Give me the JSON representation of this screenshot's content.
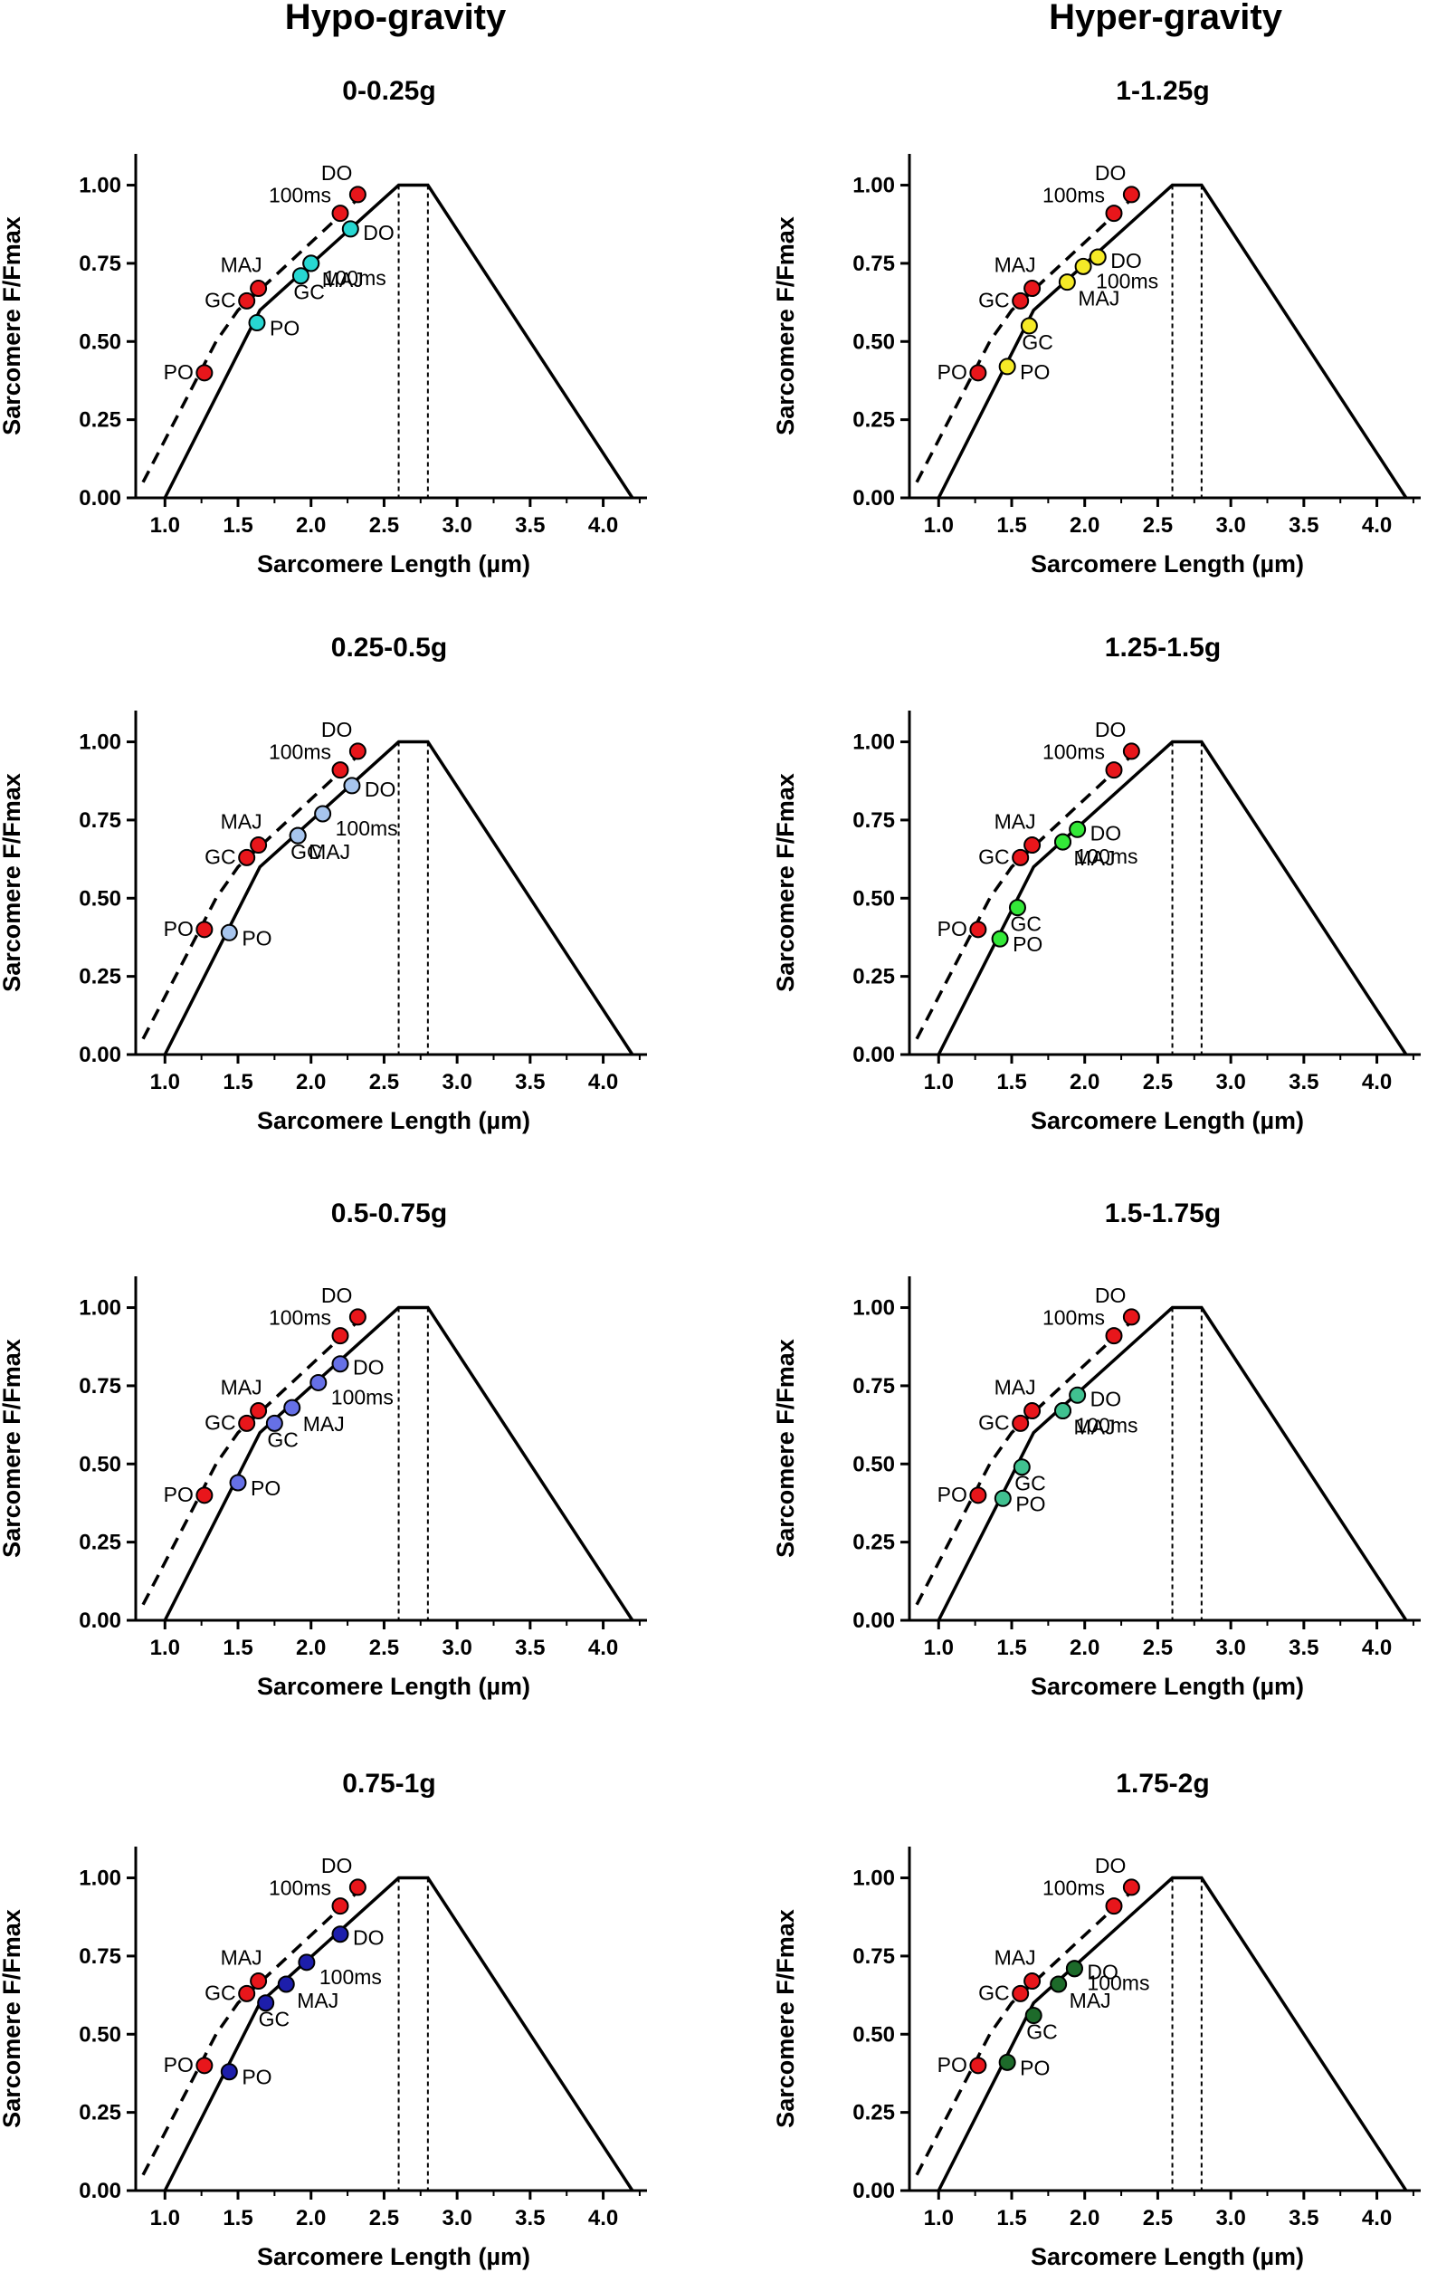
{
  "columns": [
    "Hypo-gravity",
    "Hyper-gravity"
  ],
  "reference_color": "#e8161b",
  "chart_data": [
    {
      "type": "scatter",
      "title": "0-0.25g",
      "xlabel": "Sarcomere Length (µm)",
      "ylabel": "Sarcomere F/Fmax",
      "xlim": [
        0.8,
        4.3
      ],
      "ylim": [
        0,
        1.1
      ],
      "plateau": [
        2.6,
        2.8
      ],
      "color": "#27d7d2",
      "reference": [
        {
          "label": "PO",
          "x": 1.27,
          "y": 0.4
        },
        {
          "label": "GC",
          "x": 1.56,
          "y": 0.63
        },
        {
          "label": "MAJ",
          "x": 1.64,
          "y": 0.67
        },
        {
          "label": "100ms",
          "x": 2.2,
          "y": 0.91
        },
        {
          "label": "DO",
          "x": 2.32,
          "y": 0.97
        }
      ],
      "condition": [
        {
          "label": "PO",
          "x": 1.63,
          "y": 0.56
        },
        {
          "label": "GC",
          "x": 1.93,
          "y": 0.71
        },
        {
          "label": "MAJ",
          "x": 2.0,
          "y": 0.75
        },
        {
          "label": "100ms",
          "x": 2.0,
          "y": 0.75
        },
        {
          "label": "DO",
          "x": 2.27,
          "y": 0.86
        }
      ]
    },
    {
      "type": "scatter",
      "title": "1-1.25g",
      "xlabel": "Sarcomere Length (µm)",
      "ylabel": "Sarcomere F/Fmax",
      "xlim": [
        0.8,
        4.3
      ],
      "ylim": [
        0,
        1.1
      ],
      "plateau": [
        2.6,
        2.8
      ],
      "color": "#f5ea27",
      "reference": [
        {
          "label": "PO",
          "x": 1.27,
          "y": 0.4
        },
        {
          "label": "GC",
          "x": 1.56,
          "y": 0.63
        },
        {
          "label": "MAJ",
          "x": 1.64,
          "y": 0.67
        },
        {
          "label": "100ms",
          "x": 2.2,
          "y": 0.91
        },
        {
          "label": "DO",
          "x": 2.32,
          "y": 0.97
        }
      ],
      "condition": [
        {
          "label": "PO",
          "x": 1.47,
          "y": 0.42
        },
        {
          "label": "GC",
          "x": 1.62,
          "y": 0.55
        },
        {
          "label": "MAJ",
          "x": 1.88,
          "y": 0.69
        },
        {
          "label": "100ms",
          "x": 1.99,
          "y": 0.74
        },
        {
          "label": "DO",
          "x": 2.09,
          "y": 0.77
        }
      ]
    },
    {
      "type": "scatter",
      "title": "0.25-0.5g",
      "xlabel": "Sarcomere Length (µm)",
      "ylabel": "Sarcomere F/Fmax",
      "xlim": [
        0.8,
        4.3
      ],
      "ylim": [
        0,
        1.1
      ],
      "plateau": [
        2.6,
        2.8
      ],
      "color": "#a7c5ee",
      "reference": [
        {
          "label": "PO",
          "x": 1.27,
          "y": 0.4
        },
        {
          "label": "GC",
          "x": 1.56,
          "y": 0.63
        },
        {
          "label": "MAJ",
          "x": 1.64,
          "y": 0.67
        },
        {
          "label": "100ms",
          "x": 2.2,
          "y": 0.91
        },
        {
          "label": "DO",
          "x": 2.32,
          "y": 0.97
        }
      ],
      "condition": [
        {
          "label": "PO",
          "x": 1.44,
          "y": 0.39
        },
        {
          "label": "GC",
          "x": 1.91,
          "y": 0.7
        },
        {
          "label": "MAJ",
          "x": 1.91,
          "y": 0.7
        },
        {
          "label": "100ms",
          "x": 2.08,
          "y": 0.77
        },
        {
          "label": "DO",
          "x": 2.28,
          "y": 0.86
        }
      ]
    },
    {
      "type": "scatter",
      "title": "1.25-1.5g",
      "xlabel": "Sarcomere Length (µm)",
      "ylabel": "Sarcomere F/Fmax",
      "xlim": [
        0.8,
        4.3
      ],
      "ylim": [
        0,
        1.1
      ],
      "plateau": [
        2.6,
        2.8
      ],
      "color": "#33e838",
      "reference": [
        {
          "label": "PO",
          "x": 1.27,
          "y": 0.4
        },
        {
          "label": "GC",
          "x": 1.56,
          "y": 0.63
        },
        {
          "label": "MAJ",
          "x": 1.64,
          "y": 0.67
        },
        {
          "label": "100ms",
          "x": 2.2,
          "y": 0.91
        },
        {
          "label": "DO",
          "x": 2.32,
          "y": 0.97
        }
      ],
      "condition": [
        {
          "label": "PO",
          "x": 1.42,
          "y": 0.37
        },
        {
          "label": "GC",
          "x": 1.54,
          "y": 0.47
        },
        {
          "label": "MAJ",
          "x": 1.85,
          "y": 0.68
        },
        {
          "label": "100ms",
          "x": 1.85,
          "y": 0.68
        },
        {
          "label": "DO",
          "x": 1.95,
          "y": 0.72
        }
      ]
    },
    {
      "type": "scatter",
      "title": "0.5-0.75g",
      "xlabel": "Sarcomere Length (µm)",
      "ylabel": "Sarcomere F/Fmax",
      "xlim": [
        0.8,
        4.3
      ],
      "ylim": [
        0,
        1.1
      ],
      "plateau": [
        2.6,
        2.8
      ],
      "color": "#6670e6",
      "reference": [
        {
          "label": "PO",
          "x": 1.27,
          "y": 0.4
        },
        {
          "label": "GC",
          "x": 1.56,
          "y": 0.63
        },
        {
          "label": "MAJ",
          "x": 1.64,
          "y": 0.67
        },
        {
          "label": "100ms",
          "x": 2.2,
          "y": 0.91
        },
        {
          "label": "DO",
          "x": 2.32,
          "y": 0.97
        }
      ],
      "condition": [
        {
          "label": "PO",
          "x": 1.5,
          "y": 0.44
        },
        {
          "label": "GC",
          "x": 1.75,
          "y": 0.63
        },
        {
          "label": "MAJ",
          "x": 1.87,
          "y": 0.68
        },
        {
          "label": "100ms",
          "x": 2.05,
          "y": 0.76
        },
        {
          "label": "DO",
          "x": 2.2,
          "y": 0.82
        }
      ]
    },
    {
      "type": "scatter",
      "title": "1.5-1.75g",
      "xlabel": "Sarcomere Length (µm)",
      "ylabel": "Sarcomere F/Fmax",
      "xlim": [
        0.8,
        4.3
      ],
      "ylim": [
        0,
        1.1
      ],
      "plateau": [
        2.6,
        2.8
      ],
      "color": "#40c190",
      "reference": [
        {
          "label": "PO",
          "x": 1.27,
          "y": 0.4
        },
        {
          "label": "GC",
          "x": 1.56,
          "y": 0.63
        },
        {
          "label": "MAJ",
          "x": 1.64,
          "y": 0.67
        },
        {
          "label": "100ms",
          "x": 2.2,
          "y": 0.91
        },
        {
          "label": "DO",
          "x": 2.32,
          "y": 0.97
        }
      ],
      "condition": [
        {
          "label": "PO",
          "x": 1.44,
          "y": 0.39
        },
        {
          "label": "GC",
          "x": 1.57,
          "y": 0.49
        },
        {
          "label": "MAJ",
          "x": 1.85,
          "y": 0.67
        },
        {
          "label": "100ms",
          "x": 1.85,
          "y": 0.67
        },
        {
          "label": "DO",
          "x": 1.95,
          "y": 0.72
        }
      ]
    },
    {
      "type": "scatter",
      "title": "0.75-1g",
      "xlabel": "Sarcomere Length (µm)",
      "ylabel": "Sarcomere F/Fmax",
      "xlim": [
        0.8,
        4.3
      ],
      "ylim": [
        0,
        1.1
      ],
      "plateau": [
        2.6,
        2.8
      ],
      "color": "#1d1eab",
      "reference": [
        {
          "label": "PO",
          "x": 1.27,
          "y": 0.4
        },
        {
          "label": "GC",
          "x": 1.56,
          "y": 0.63
        },
        {
          "label": "MAJ",
          "x": 1.64,
          "y": 0.67
        },
        {
          "label": "100ms",
          "x": 2.2,
          "y": 0.91
        },
        {
          "label": "DO",
          "x": 2.32,
          "y": 0.97
        }
      ],
      "condition": [
        {
          "label": "PO",
          "x": 1.44,
          "y": 0.38
        },
        {
          "label": "GC",
          "x": 1.69,
          "y": 0.6
        },
        {
          "label": "MAJ",
          "x": 1.83,
          "y": 0.66
        },
        {
          "label": "100ms",
          "x": 1.97,
          "y": 0.73
        },
        {
          "label": "DO",
          "x": 2.2,
          "y": 0.82
        }
      ]
    },
    {
      "type": "scatter",
      "title": "1.75-2g",
      "xlabel": "Sarcomere Length (µm)",
      "ylabel": "Sarcomere F/Fmax",
      "xlim": [
        0.8,
        4.3
      ],
      "ylim": [
        0,
        1.1
      ],
      "plateau": [
        2.6,
        2.8
      ],
      "color": "#1d6a2a",
      "reference": [
        {
          "label": "PO",
          "x": 1.27,
          "y": 0.4
        },
        {
          "label": "GC",
          "x": 1.56,
          "y": 0.63
        },
        {
          "label": "MAJ",
          "x": 1.64,
          "y": 0.67
        },
        {
          "label": "100ms",
          "x": 2.2,
          "y": 0.91
        },
        {
          "label": "DO",
          "x": 2.32,
          "y": 0.97
        }
      ],
      "condition": [
        {
          "label": "PO",
          "x": 1.47,
          "y": 0.41
        },
        {
          "label": "GC",
          "x": 1.65,
          "y": 0.56
        },
        {
          "label": "MAJ",
          "x": 1.82,
          "y": 0.66
        },
        {
          "label": "100ms",
          "x": 1.93,
          "y": 0.71
        },
        {
          "label": "DO",
          "x": 1.93,
          "y": 0.71
        }
      ]
    }
  ]
}
